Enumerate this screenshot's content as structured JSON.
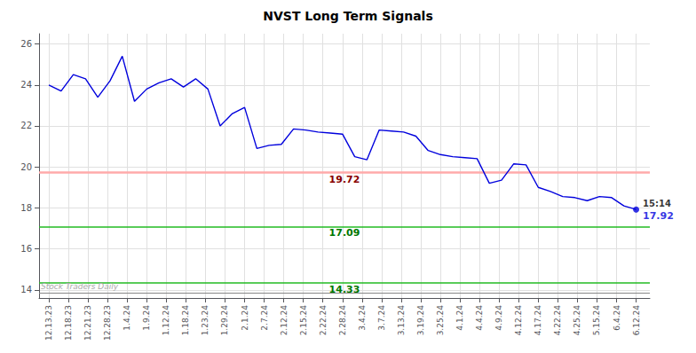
{
  "chart_data": {
    "type": "line",
    "title": "NVST Long Term Signals",
    "x": [
      0,
      0.625,
      1.25,
      1.875,
      2.5,
      3.125,
      3.75,
      4.375,
      5,
      5.625,
      6.25,
      6.875,
      7.5,
      8.125,
      8.75,
      9.375,
      10,
      10.625,
      11.25,
      11.875,
      12.5,
      13.125,
      13.75,
      14.375,
      15,
      15.625,
      16.25,
      16.875,
      17.5,
      18.125,
      18.75,
      19.375,
      20,
      20.625,
      21.25,
      21.875,
      22.5,
      23.125,
      23.75,
      24.375,
      25,
      25.625,
      26.25,
      26.875,
      27.5,
      28.125,
      28.75,
      29.375,
      30
    ],
    "values": [
      24.0,
      23.7,
      24.5,
      24.3,
      23.4,
      24.2,
      25.4,
      23.2,
      23.8,
      24.1,
      24.3,
      23.9,
      24.3,
      23.8,
      22.0,
      22.6,
      22.9,
      20.9,
      21.05,
      21.1,
      21.85,
      21.8,
      21.7,
      21.65,
      21.6,
      20.5,
      20.35,
      21.8,
      21.75,
      21.7,
      21.5,
      20.8,
      20.6,
      20.5,
      20.45,
      20.4,
      19.2,
      19.35,
      20.15,
      20.1,
      19.0,
      18.8,
      18.55,
      18.5,
      18.35,
      18.55,
      18.5,
      18.1,
      17.92
    ],
    "color": "#0000dd",
    "xlim": [
      -0.5,
      30.7
    ],
    "xticks": [
      {
        "value": 0,
        "label": "12.13.23"
      },
      {
        "value": 1,
        "label": "12.18.23"
      },
      {
        "value": 2,
        "label": "12.21.23"
      },
      {
        "value": 3,
        "label": "12.28.23"
      },
      {
        "value": 4,
        "label": "1.4.24"
      },
      {
        "value": 5,
        "label": "1.9.24"
      },
      {
        "value": 6,
        "label": "1.12.24"
      },
      {
        "value": 7,
        "label": "1.18.24"
      },
      {
        "value": 8,
        "label": "1.23.24"
      },
      {
        "value": 9,
        "label": "1.29.24"
      },
      {
        "value": 10,
        "label": "2.1.24"
      },
      {
        "value": 11,
        "label": "2.7.24"
      },
      {
        "value": 12,
        "label": "2.12.24"
      },
      {
        "value": 13,
        "label": "2.15.24"
      },
      {
        "value": 14,
        "label": "2.22.24"
      },
      {
        "value": 15,
        "label": "2.28.24"
      },
      {
        "value": 16,
        "label": "3.4.24"
      },
      {
        "value": 17,
        "label": "3.7.24"
      },
      {
        "value": 18,
        "label": "3.13.24"
      },
      {
        "value": 19,
        "label": "3.19.24"
      },
      {
        "value": 20,
        "label": "3.25.24"
      },
      {
        "value": 21,
        "label": "4.1.24"
      },
      {
        "value": 22,
        "label": "4.4.24"
      },
      {
        "value": 23,
        "label": "4.9.24"
      },
      {
        "value": 24,
        "label": "4.12.24"
      },
      {
        "value": 25,
        "label": "4.17.24"
      },
      {
        "value": 26,
        "label": "4.22.24"
      },
      {
        "value": 27,
        "label": "4.25.24"
      },
      {
        "value": 28,
        "label": "5.15.24"
      },
      {
        "value": 29,
        "label": "6.4.24"
      },
      {
        "value": 30,
        "label": "6.12.24"
      }
    ],
    "ylim": [
      13.6,
      26.5
    ],
    "yticks": [
      14,
      16,
      18,
      20,
      22,
      24,
      26
    ],
    "grid": true,
    "hlines": [
      {
        "value": 19.72,
        "label": "19.72",
        "color": "#ffaaaa",
        "label_color": "#880000"
      },
      {
        "value": 17.09,
        "label": "17.09",
        "color": "#22bb22",
        "label_color": "#007700"
      },
      {
        "value": 14.33,
        "label": "14.33",
        "color": "#22bb22",
        "label_color": "#007700"
      },
      {
        "value": 13.87,
        "label": "Stock Traders Daily",
        "color": "#888888",
        "label_color": "#aaaaaa"
      }
    ],
    "annotations": [
      {
        "text": "15:14",
        "color": "#000000"
      },
      {
        "text": "17.92",
        "color": "#0000dd"
      }
    ]
  }
}
